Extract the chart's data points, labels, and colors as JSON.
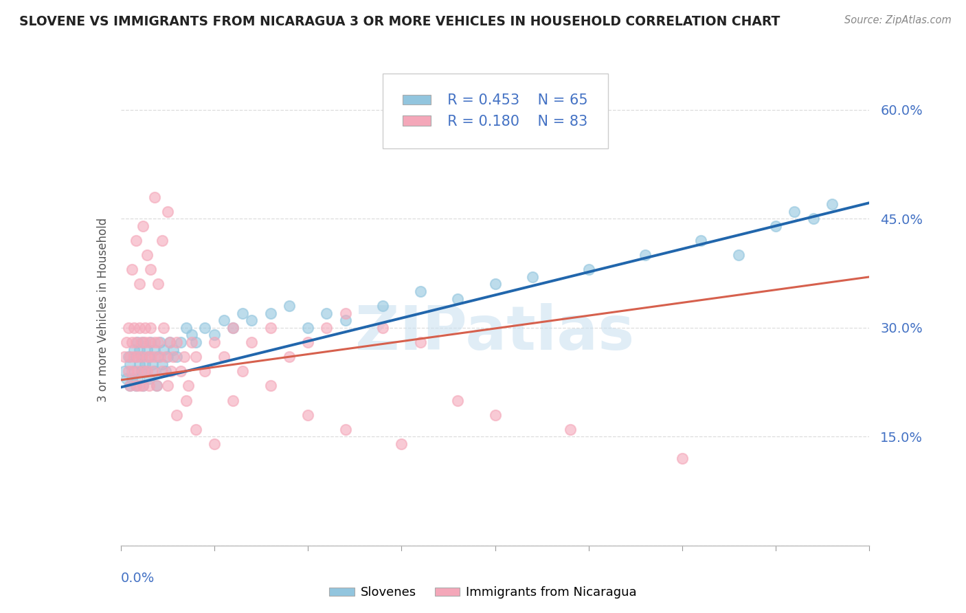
{
  "title": "SLOVENE VS IMMIGRANTS FROM NICARAGUA 3 OR MORE VEHICLES IN HOUSEHOLD CORRELATION CHART",
  "source": "Source: ZipAtlas.com",
  "ylabel": "3 or more Vehicles in Household",
  "ytick_vals": [
    0.0,
    0.15,
    0.3,
    0.45,
    0.6
  ],
  "ytick_labels": [
    "",
    "15.0%",
    "30.0%",
    "45.0%",
    "60.0%"
  ],
  "xlim": [
    0.0,
    0.4
  ],
  "ylim": [
    0.0,
    0.65
  ],
  "legend_slovene_R": "R = 0.453",
  "legend_slovene_N": "N = 65",
  "legend_nicaragua_R": "R = 0.180",
  "legend_nicaragua_N": "N = 83",
  "slovene_color": "#92c5de",
  "nicaragua_color": "#f4a7b9",
  "slovene_line_color": "#2166ac",
  "nicaragua_line_color": "#d6604d",
  "watermark_color": "#c8dff0",
  "title_color": "#222222",
  "source_color": "#888888",
  "axis_label_color": "#4472c4",
  "ylabel_color": "#555555",
  "grid_color": "#dddddd",
  "slovene_x": [
    0.002,
    0.003,
    0.004,
    0.005,
    0.005,
    0.006,
    0.007,
    0.007,
    0.008,
    0.008,
    0.009,
    0.009,
    0.01,
    0.01,
    0.011,
    0.011,
    0.012,
    0.012,
    0.013,
    0.013,
    0.014,
    0.015,
    0.015,
    0.016,
    0.017,
    0.018,
    0.018,
    0.019,
    0.02,
    0.021,
    0.022,
    0.023,
    0.024,
    0.025,
    0.026,
    0.028,
    0.03,
    0.032,
    0.035,
    0.038,
    0.04,
    0.045,
    0.05,
    0.055,
    0.06,
    0.065,
    0.07,
    0.08,
    0.09,
    0.1,
    0.11,
    0.12,
    0.14,
    0.16,
    0.18,
    0.2,
    0.22,
    0.25,
    0.28,
    0.31,
    0.33,
    0.35,
    0.36,
    0.37,
    0.38
  ],
  "slovene_y": [
    0.24,
    0.23,
    0.26,
    0.22,
    0.25,
    0.23,
    0.24,
    0.27,
    0.22,
    0.26,
    0.28,
    0.23,
    0.25,
    0.27,
    0.24,
    0.26,
    0.22,
    0.28,
    0.25,
    0.24,
    0.27,
    0.23,
    0.26,
    0.28,
    0.25,
    0.24,
    0.27,
    0.22,
    0.26,
    0.28,
    0.25,
    0.27,
    0.24,
    0.26,
    0.28,
    0.27,
    0.26,
    0.28,
    0.3,
    0.29,
    0.28,
    0.3,
    0.29,
    0.31,
    0.3,
    0.32,
    0.31,
    0.32,
    0.33,
    0.3,
    0.32,
    0.31,
    0.33,
    0.35,
    0.34,
    0.36,
    0.37,
    0.38,
    0.4,
    0.42,
    0.4,
    0.44,
    0.46,
    0.45,
    0.47
  ],
  "nicaragua_x": [
    0.002,
    0.003,
    0.004,
    0.004,
    0.005,
    0.005,
    0.006,
    0.006,
    0.007,
    0.007,
    0.008,
    0.008,
    0.009,
    0.009,
    0.01,
    0.01,
    0.011,
    0.011,
    0.012,
    0.012,
    0.013,
    0.013,
    0.014,
    0.014,
    0.015,
    0.015,
    0.016,
    0.016,
    0.017,
    0.018,
    0.018,
    0.019,
    0.02,
    0.021,
    0.022,
    0.023,
    0.024,
    0.025,
    0.026,
    0.027,
    0.028,
    0.03,
    0.032,
    0.034,
    0.036,
    0.038,
    0.04,
    0.045,
    0.05,
    0.055,
    0.06,
    0.065,
    0.07,
    0.08,
    0.09,
    0.1,
    0.11,
    0.12,
    0.14,
    0.16,
    0.006,
    0.008,
    0.01,
    0.012,
    0.014,
    0.016,
    0.018,
    0.02,
    0.022,
    0.025,
    0.03,
    0.035,
    0.04,
    0.05,
    0.06,
    0.08,
    0.1,
    0.12,
    0.15,
    0.18,
    0.2,
    0.24,
    0.3
  ],
  "nicaragua_y": [
    0.26,
    0.28,
    0.24,
    0.3,
    0.26,
    0.22,
    0.28,
    0.24,
    0.26,
    0.3,
    0.22,
    0.28,
    0.26,
    0.24,
    0.3,
    0.22,
    0.28,
    0.26,
    0.24,
    0.22,
    0.28,
    0.3,
    0.24,
    0.26,
    0.28,
    0.22,
    0.26,
    0.3,
    0.24,
    0.28,
    0.26,
    0.22,
    0.28,
    0.26,
    0.24,
    0.3,
    0.26,
    0.22,
    0.28,
    0.24,
    0.26,
    0.28,
    0.24,
    0.26,
    0.22,
    0.28,
    0.26,
    0.24,
    0.28,
    0.26,
    0.3,
    0.24,
    0.28,
    0.3,
    0.26,
    0.28,
    0.3,
    0.32,
    0.3,
    0.28,
    0.38,
    0.42,
    0.36,
    0.44,
    0.4,
    0.38,
    0.48,
    0.36,
    0.42,
    0.46,
    0.18,
    0.2,
    0.16,
    0.14,
    0.2,
    0.22,
    0.18,
    0.16,
    0.14,
    0.2,
    0.18,
    0.16,
    0.12
  ],
  "slovene_line_x": [
    0.0,
    0.4
  ],
  "slovene_line_y": [
    0.218,
    0.472
  ],
  "nicaragua_line_x": [
    0.0,
    0.4
  ],
  "nicaragua_line_y": [
    0.228,
    0.37
  ]
}
